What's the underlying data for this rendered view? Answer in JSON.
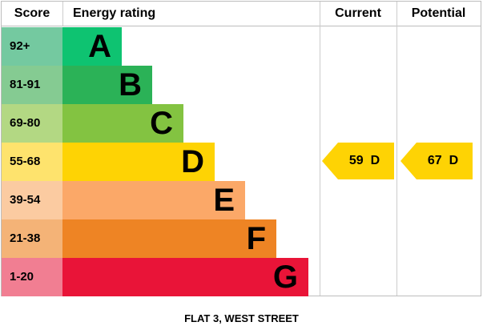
{
  "header": {
    "score": "Score",
    "energy_rating": "Energy rating",
    "current": "Current",
    "potential": "Potential"
  },
  "bands": [
    {
      "letter": "A",
      "score": "92+",
      "bar_color": "#0ec371",
      "score_color": "#74c9a0"
    },
    {
      "letter": "B",
      "score": "81-91",
      "bar_color": "#2bb257",
      "score_color": "#85cb92"
    },
    {
      "letter": "C",
      "score": "69-80",
      "bar_color": "#83c341",
      "score_color": "#b3d883"
    },
    {
      "letter": "D",
      "score": "55-68",
      "bar_color": "#fed304",
      "score_color": "#fee36d"
    },
    {
      "letter": "E",
      "score": "39-54",
      "bar_color": "#fba868",
      "score_color": "#fbcba1"
    },
    {
      "letter": "F",
      "score": "21-38",
      "bar_color": "#ee8424",
      "score_color": "#f4b377"
    },
    {
      "letter": "G",
      "score": "1-20",
      "bar_color": "#e91438",
      "score_color": "#f17e92"
    }
  ],
  "current": {
    "value": "59",
    "letter": "D",
    "arrow_color": "#fed304"
  },
  "potential": {
    "value": "67",
    "letter": "D",
    "arrow_color": "#fed304"
  },
  "caption": "FLAT 3, WEST STREET",
  "chart_data": {
    "type": "bar",
    "title": "Energy rating",
    "categories": [
      "A",
      "B",
      "C",
      "D",
      "E",
      "F",
      "G"
    ],
    "score_ranges": [
      "92+",
      "81-91",
      "69-80",
      "55-68",
      "39-54",
      "21-38",
      "1-20"
    ],
    "values": [
      74,
      112,
      151,
      190,
      228,
      267,
      307
    ],
    "band_colors": [
      "#0ec371",
      "#2bb257",
      "#83c341",
      "#fed304",
      "#fba868",
      "#ee8424",
      "#e91438"
    ],
    "current_rating": {
      "value": 59,
      "band": "D"
    },
    "potential_rating": {
      "value": 67,
      "band": "D"
    },
    "xlabel": "Score",
    "ylabel": "",
    "legend_position": "none",
    "grid": false
  }
}
